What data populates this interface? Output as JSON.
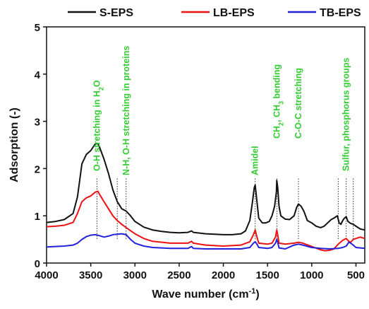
{
  "chart_data": {
    "type": "line",
    "xlabel": "Wave number (cm",
    "xlabel_sup": "-1",
    "xlabel_end": ")",
    "ylabel": "Adsorption (-)",
    "xlim": [
      4000,
      400
    ],
    "ylim": [
      0,
      5
    ],
    "x_reversed": true,
    "grid": false,
    "legend_position": "top",
    "x_ticks": [
      "4000",
      "3500",
      "3000",
      "2500",
      "2000",
      "1500",
      "1000",
      "500"
    ],
    "y_ticks": [
      "0",
      "1",
      "2",
      "3",
      "4",
      "5"
    ],
    "annotation_color": "#33cc33",
    "annotations": [
      {
        "id": "oh",
        "text": "O-H stretching in H",
        "sub": "2",
        "tail": "O",
        "x": 3430
      },
      {
        "id": "nh",
        "text": "N-H, O-H stretching in proteins",
        "x": 3100
      },
      {
        "id": "amide",
        "text": "AmideI",
        "x": 1640
      },
      {
        "id": "ch",
        "text": "CH",
        "sub": "2",
        "mid": ", CH",
        "sub2": "3",
        "tail": " bending",
        "x": 1395
      },
      {
        "id": "coc",
        "text": "C-O-C stretching",
        "x": 1150
      },
      {
        "id": "sp",
        "text": "Sulfur, phosphorus groups",
        "x": 610
      }
    ],
    "annotation_lines_x": [
      3430,
      3200,
      3100,
      1640,
      1395,
      1150,
      700,
      610,
      530
    ],
    "series": [
      {
        "name": "S-EPS",
        "color": "#111111",
        "points": [
          [
            4000,
            0.86
          ],
          [
            3900,
            0.88
          ],
          [
            3800,
            0.92
          ],
          [
            3700,
            1.05
          ],
          [
            3650,
            1.4
          ],
          [
            3600,
            2.1
          ],
          [
            3550,
            2.3
          ],
          [
            3500,
            2.38
          ],
          [
            3450,
            2.52
          ],
          [
            3420,
            2.53
          ],
          [
            3400,
            2.45
          ],
          [
            3350,
            2.2
          ],
          [
            3300,
            1.9
          ],
          [
            3250,
            1.55
          ],
          [
            3200,
            1.3
          ],
          [
            3150,
            1.15
          ],
          [
            3100,
            1.1
          ],
          [
            3050,
            1.0
          ],
          [
            3000,
            0.88
          ],
          [
            2900,
            0.76
          ],
          [
            2800,
            0.7
          ],
          [
            2700,
            0.67
          ],
          [
            2600,
            0.65
          ],
          [
            2500,
            0.64
          ],
          [
            2400,
            0.65
          ],
          [
            2360,
            0.68
          ],
          [
            2340,
            0.65
          ],
          [
            2200,
            0.62
          ],
          [
            2000,
            0.6
          ],
          [
            1900,
            0.6
          ],
          [
            1800,
            0.62
          ],
          [
            1750,
            0.68
          ],
          [
            1700,
            0.9
          ],
          [
            1670,
            1.3
          ],
          [
            1650,
            1.6
          ],
          [
            1640,
            1.65
          ],
          [
            1620,
            1.3
          ],
          [
            1600,
            0.95
          ],
          [
            1560,
            0.85
          ],
          [
            1520,
            0.85
          ],
          [
            1480,
            0.88
          ],
          [
            1450,
            1.0
          ],
          [
            1420,
            1.2
          ],
          [
            1400,
            1.5
          ],
          [
            1395,
            1.75
          ],
          [
            1385,
            1.6
          ],
          [
            1370,
            1.2
          ],
          [
            1350,
            1.0
          ],
          [
            1300,
            0.93
          ],
          [
            1250,
            0.92
          ],
          [
            1200,
            1.0
          ],
          [
            1170,
            1.18
          ],
          [
            1150,
            1.25
          ],
          [
            1120,
            1.2
          ],
          [
            1090,
            1.1
          ],
          [
            1050,
            0.9
          ],
          [
            1000,
            0.85
          ],
          [
            950,
            0.78
          ],
          [
            900,
            0.75
          ],
          [
            860,
            0.78
          ],
          [
            820,
            0.85
          ],
          [
            780,
            0.92
          ],
          [
            750,
            0.95
          ],
          [
            710,
            1.0
          ],
          [
            690,
            0.85
          ],
          [
            670,
            0.82
          ],
          [
            650,
            0.9
          ],
          [
            630,
            0.95
          ],
          [
            610,
            0.98
          ],
          [
            590,
            0.88
          ],
          [
            560,
            0.84
          ],
          [
            530,
            0.82
          ],
          [
            500,
            0.78
          ],
          [
            450,
            0.72
          ],
          [
            400,
            0.7
          ]
        ]
      },
      {
        "name": "LB-EPS",
        "color": "#ee1111",
        "points": [
          [
            4000,
            0.77
          ],
          [
            3900,
            0.78
          ],
          [
            3800,
            0.8
          ],
          [
            3700,
            0.86
          ],
          [
            3650,
            1.05
          ],
          [
            3600,
            1.3
          ],
          [
            3550,
            1.38
          ],
          [
            3500,
            1.42
          ],
          [
            3450,
            1.5
          ],
          [
            3420,
            1.52
          ],
          [
            3400,
            1.45
          ],
          [
            3350,
            1.3
          ],
          [
            3300,
            1.15
          ],
          [
            3250,
            1.0
          ],
          [
            3200,
            0.9
          ],
          [
            3150,
            0.82
          ],
          [
            3100,
            0.75
          ],
          [
            3000,
            0.62
          ],
          [
            2900,
            0.52
          ],
          [
            2800,
            0.46
          ],
          [
            2600,
            0.42
          ],
          [
            2400,
            0.42
          ],
          [
            2360,
            0.46
          ],
          [
            2340,
            0.42
          ],
          [
            2200,
            0.38
          ],
          [
            2000,
            0.36
          ],
          [
            1800,
            0.38
          ],
          [
            1700,
            0.45
          ],
          [
            1660,
            0.6
          ],
          [
            1640,
            0.7
          ],
          [
            1620,
            0.55
          ],
          [
            1600,
            0.42
          ],
          [
            1500,
            0.4
          ],
          [
            1450,
            0.42
          ],
          [
            1410,
            0.55
          ],
          [
            1395,
            0.7
          ],
          [
            1385,
            0.6
          ],
          [
            1370,
            0.42
          ],
          [
            1300,
            0.4
          ],
          [
            1200,
            0.42
          ],
          [
            1150,
            0.44
          ],
          [
            1100,
            0.42
          ],
          [
            1000,
            0.35
          ],
          [
            900,
            0.28
          ],
          [
            850,
            0.26
          ],
          [
            800,
            0.27
          ],
          [
            750,
            0.3
          ],
          [
            700,
            0.4
          ],
          [
            650,
            0.48
          ],
          [
            610,
            0.52
          ],
          [
            580,
            0.46
          ],
          [
            560,
            0.44
          ],
          [
            530,
            0.5
          ],
          [
            500,
            0.52
          ],
          [
            450,
            0.55
          ],
          [
            400,
            0.52
          ]
        ]
      },
      {
        "name": "TB-EPS",
        "color": "#2222dd",
        "points": [
          [
            4000,
            0.34
          ],
          [
            3900,
            0.35
          ],
          [
            3800,
            0.36
          ],
          [
            3700,
            0.38
          ],
          [
            3650,
            0.42
          ],
          [
            3600,
            0.5
          ],
          [
            3550,
            0.56
          ],
          [
            3500,
            0.59
          ],
          [
            3450,
            0.6
          ],
          [
            3400,
            0.58
          ],
          [
            3350,
            0.55
          ],
          [
            3300,
            0.57
          ],
          [
            3250,
            0.6
          ],
          [
            3200,
            0.61
          ],
          [
            3150,
            0.62
          ],
          [
            3100,
            0.6
          ],
          [
            3050,
            0.5
          ],
          [
            3000,
            0.42
          ],
          [
            2900,
            0.36
          ],
          [
            2800,
            0.33
          ],
          [
            2600,
            0.31
          ],
          [
            2400,
            0.31
          ],
          [
            2360,
            0.35
          ],
          [
            2340,
            0.31
          ],
          [
            2200,
            0.3
          ],
          [
            2000,
            0.3
          ],
          [
            1800,
            0.3
          ],
          [
            1700,
            0.33
          ],
          [
            1660,
            0.42
          ],
          [
            1640,
            0.45
          ],
          [
            1620,
            0.4
          ],
          [
            1600,
            0.33
          ],
          [
            1500,
            0.31
          ],
          [
            1450,
            0.33
          ],
          [
            1410,
            0.42
          ],
          [
            1395,
            0.5
          ],
          [
            1385,
            0.44
          ],
          [
            1370,
            0.32
          ],
          [
            1300,
            0.3
          ],
          [
            1200,
            0.38
          ],
          [
            1150,
            0.4
          ],
          [
            1100,
            0.38
          ],
          [
            1000,
            0.33
          ],
          [
            900,
            0.31
          ],
          [
            800,
            0.3
          ],
          [
            700,
            0.31
          ],
          [
            650,
            0.33
          ],
          [
            610,
            0.36
          ],
          [
            580,
            0.44
          ],
          [
            560,
            0.42
          ],
          [
            530,
            0.38
          ],
          [
            500,
            0.33
          ],
          [
            450,
            0.32
          ],
          [
            400,
            0.31
          ]
        ]
      }
    ]
  }
}
